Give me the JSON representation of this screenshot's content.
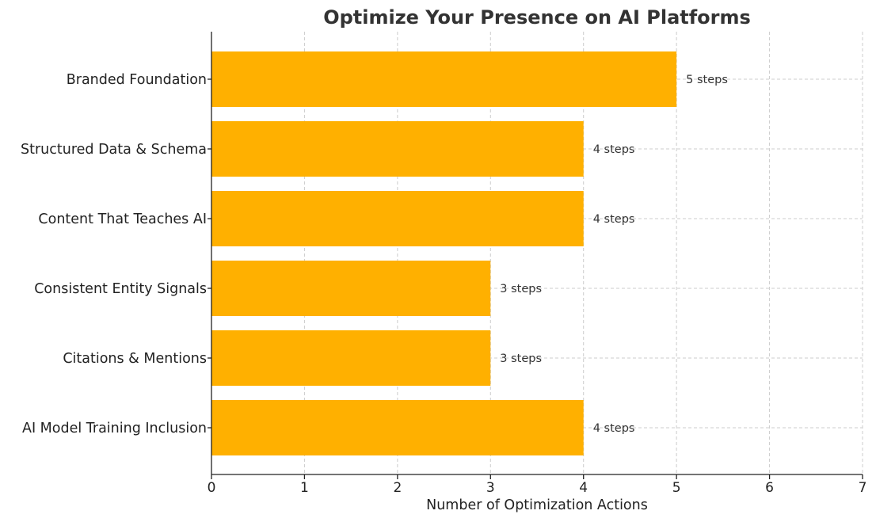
{
  "chart_data": {
    "type": "bar",
    "orientation": "horizontal",
    "title": "Optimize Your Presence on AI Platforms",
    "xlabel": "Number of Optimization Actions",
    "ylabel": "",
    "categories": [
      "Branded Foundation",
      "Structured Data & Schema",
      "Content That Teaches AI",
      "Consistent Entity Signals",
      "Citations & Mentions",
      "AI Model Training Inclusion"
    ],
    "values": [
      5,
      4,
      4,
      3,
      3,
      4
    ],
    "data_labels": [
      "5 steps",
      "4 steps",
      "4 steps",
      "3 steps",
      "3 steps",
      "4 steps"
    ],
    "xlim": [
      0,
      7
    ],
    "xticks": [
      "0",
      "1",
      "2",
      "3",
      "4",
      "5",
      "6",
      "7"
    ],
    "grid": true,
    "bar_color": "#ffb000"
  }
}
